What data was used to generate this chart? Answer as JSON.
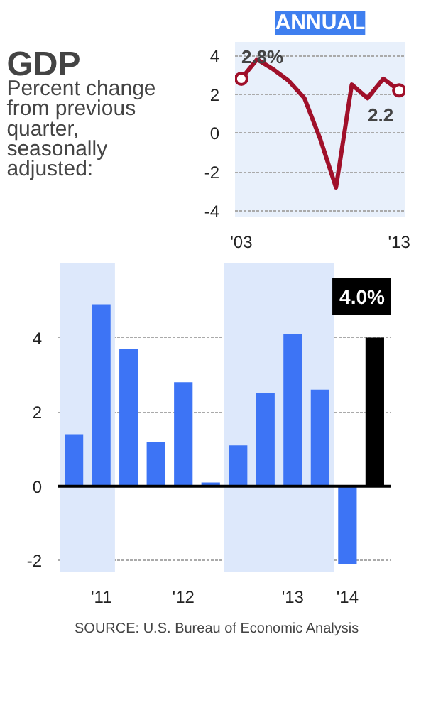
{
  "chart_data": [
    {
      "type": "line",
      "title": "ANNUAL",
      "x": [
        2003,
        2004,
        2005,
        2006,
        2007,
        2008,
        2009,
        2010,
        2011,
        2012,
        2013
      ],
      "series": [
        {
          "type": "line",
          "color": "#a0102a",
          "marker": "none",
          "values": [
            2.8,
            3.8,
            3.3,
            2.7,
            1.8,
            -0.3,
            -2.8,
            2.5,
            1.8,
            2.8,
            2.2
          ]
        },
        {
          "type": "scatter",
          "color": "#a0102a",
          "marker": "circle",
          "x": [
            2003,
            2013
          ],
          "values": [
            2.8,
            2.2
          ]
        }
      ],
      "xlim": [
        2002.6,
        2013.4
      ],
      "ylim": [
        -4.3,
        4.7
      ],
      "xticks": [
        {
          "value": 2003,
          "label": "'03"
        },
        {
          "value": 2013,
          "label": "'13"
        }
      ],
      "yticks": [
        -4,
        -2,
        0,
        2,
        4
      ],
      "grid": "y",
      "annotations": [
        {
          "text": "2.8%",
          "x": 2003,
          "y": 2.8
        },
        {
          "text": "2.2",
          "x": 2013,
          "y": 2.2
        }
      ]
    },
    {
      "type": "bar",
      "title": "GDP",
      "subtitle": "Percent change from previous quarter, seasonally adjusted:",
      "categories": [
        null,
        "'11",
        null,
        null,
        "'12",
        null,
        null,
        null,
        "'13",
        null,
        "'14",
        null
      ],
      "values": [
        1.4,
        4.9,
        3.7,
        1.2,
        2.8,
        0.1,
        1.1,
        2.5,
        4.1,
        2.6,
        -2.1,
        4.0
      ],
      "colors": [
        "#3d74f5",
        "#3d74f5",
        "#3d74f5",
        "#3d74f5",
        "#3d74f5",
        "#3d74f5",
        "#3d74f5",
        "#3d74f5",
        "#3d74f5",
        "#3d74f5",
        "#3d74f5",
        "#000000"
      ],
      "value_labels": [
        null,
        null,
        null,
        null,
        null,
        null,
        null,
        null,
        null,
        null,
        null,
        "4.0%"
      ],
      "ylim": [
        -2.3,
        6.0
      ],
      "yticks": [
        -2,
        0,
        2,
        4
      ],
      "grid": "y",
      "ref_lines": [
        {
          "axis": "y",
          "value": 0,
          "color": "#000000"
        }
      ],
      "annotations": [
        "SOURCE: U.S. Bureau of Economic Analysis"
      ]
    }
  ]
}
